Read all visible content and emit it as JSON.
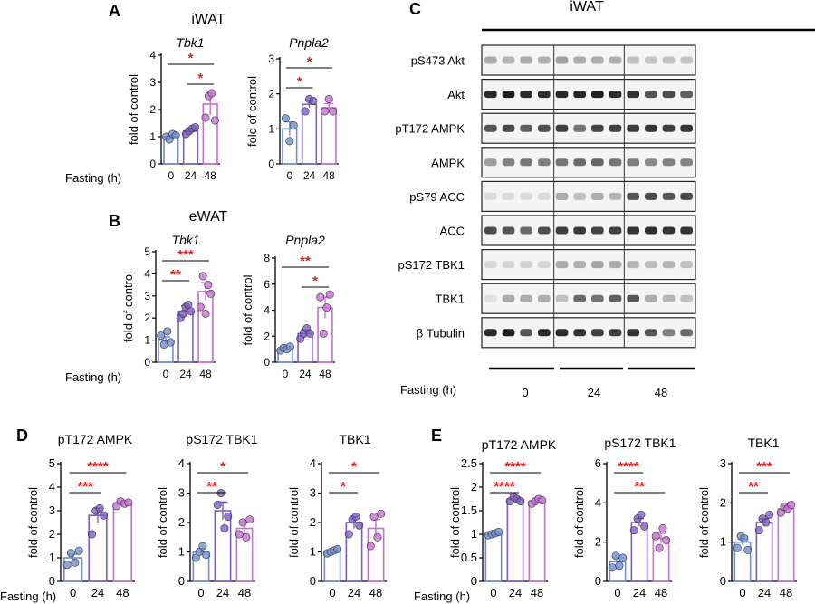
{
  "panels": {
    "A": {
      "letter": "A",
      "section": "iWAT"
    },
    "B": {
      "letter": "B",
      "section": "eWAT"
    },
    "C": {
      "letter": "C",
      "section": "iWAT"
    },
    "D": {
      "letter": "D"
    },
    "E": {
      "letter": "E"
    }
  },
  "fasting_label": "Fasting (h)",
  "colors": {
    "h0": "#6f8fd0",
    "h24": "#7e5cc4",
    "h48": "#c76fd3",
    "sig": "#e02020",
    "axis": "#000000"
  },
  "western": {
    "bands": [
      "pS473 Akt",
      "Akt",
      "pT172 AMPK",
      "AMPK",
      "pS79 ACC",
      "ACC",
      "pS172 TBK1",
      "TBK1",
      "β Tubulin"
    ],
    "groups": [
      "0",
      "24",
      "48"
    ],
    "fasting_label": "Fasting (h)"
  },
  "chart_data": [
    {
      "id": "A1",
      "panel": "A",
      "type": "bar",
      "title": "Tbk1",
      "ylabel": "fold of control",
      "categories": [
        "0",
        "24",
        "48"
      ],
      "values": [
        1.0,
        1.2,
        2.2
      ],
      "errors": [
        0.05,
        0.12,
        0.4
      ],
      "points": [
        [
          1.0,
          0.9,
          1.1,
          1.05
        ],
        [
          1.1,
          1.2,
          1.3,
          1.35
        ],
        [
          1.7,
          2.5,
          2.6,
          1.6
        ]
      ],
      "ylim": [
        0,
        4
      ],
      "yticks": [
        0,
        1,
        2,
        3,
        4
      ],
      "sig": [
        {
          "from": 0,
          "to": 2,
          "label": "*"
        },
        {
          "from": 1,
          "to": 2,
          "label": "*"
        }
      ]
    },
    {
      "id": "A2",
      "panel": "A",
      "type": "bar",
      "title": "Pnpla2",
      "ylabel": "fold of control",
      "categories": [
        "0",
        "24",
        "48"
      ],
      "values": [
        1.0,
        1.7,
        1.6
      ],
      "errors": [
        0.2,
        0.1,
        0.12
      ],
      "points": [
        [
          1.3,
          0.65,
          1.1
        ],
        [
          1.5,
          1.85,
          1.8
        ],
        [
          1.5,
          1.85,
          1.5
        ]
      ],
      "ylim": [
        0,
        3
      ],
      "yticks": [
        0,
        1,
        2,
        3
      ],
      "sig": [
        {
          "from": 0,
          "to": 2,
          "label": "*"
        },
        {
          "from": 0,
          "to": 1,
          "label": "*"
        }
      ]
    },
    {
      "id": "B1",
      "panel": "B",
      "type": "bar",
      "title": "Tbk1",
      "ylabel": "fold of control",
      "categories": [
        "0",
        "24",
        "48"
      ],
      "values": [
        1.0,
        2.3,
        3.2
      ],
      "errors": [
        0.15,
        0.25,
        0.4
      ],
      "points": [
        [
          1.2,
          0.8,
          1.4,
          0.9
        ],
        [
          2.0,
          2.2,
          2.5,
          2.6,
          2.3
        ],
        [
          2.5,
          3.9,
          2.2,
          3.5,
          3.1
        ]
      ],
      "ylim": [
        0,
        5
      ],
      "yticks": [
        0,
        1,
        2,
        3,
        4,
        5
      ],
      "sig": [
        {
          "from": 0,
          "to": 2,
          "label": "***"
        },
        {
          "from": 0,
          "to": 1,
          "label": "**"
        }
      ]
    },
    {
      "id": "B2",
      "panel": "B",
      "type": "bar",
      "title": "Pnpla2",
      "ylabel": "fold of control",
      "categories": [
        "0",
        "24",
        "48"
      ],
      "values": [
        1.0,
        2.2,
        4.2
      ],
      "errors": [
        0.1,
        0.3,
        0.8
      ],
      "points": [
        [
          0.9,
          1.1,
          1.0,
          1.2
        ],
        [
          1.8,
          2.2,
          2.6,
          2.2
        ],
        [
          5.0,
          2.2,
          4.2,
          5.2
        ]
      ],
      "ylim": [
        0,
        8
      ],
      "yticks": [
        0,
        2,
        4,
        6,
        8
      ],
      "sig": [
        {
          "from": 0,
          "to": 2,
          "label": "**"
        },
        {
          "from": 1,
          "to": 2,
          "label": "*"
        }
      ]
    },
    {
      "id": "D1",
      "panel": "D",
      "type": "bar",
      "title": "pT172 AMPK",
      "ylabel": "fold of control",
      "categories": [
        "0",
        "24",
        "48"
      ],
      "values": [
        1.0,
        2.8,
        3.3
      ],
      "errors": [
        0.15,
        0.3,
        0.12
      ],
      "points": [
        [
          0.7,
          1.2,
          0.8,
          1.3
        ],
        [
          2.0,
          3.0,
          3.1,
          2.8
        ],
        [
          3.2,
          3.4,
          3.3,
          3.35
        ]
      ],
      "ylim": [
        0,
        5
      ],
      "yticks": [
        0,
        1,
        2,
        3,
        4,
        5
      ],
      "sig": [
        {
          "from": 0,
          "to": 2,
          "label": "****"
        },
        {
          "from": 0,
          "to": 1,
          "label": "***"
        }
      ]
    },
    {
      "id": "D2",
      "panel": "D",
      "type": "bar",
      "title": "pS172 TBK1",
      "ylabel": "fold of control",
      "categories": [
        "0",
        "24",
        "48"
      ],
      "values": [
        1.0,
        2.4,
        1.8
      ],
      "errors": [
        0.12,
        0.3,
        0.2
      ],
      "points": [
        [
          0.8,
          1.0,
          1.2,
          0.9
        ],
        [
          2.6,
          3.0,
          1.8,
          2.2
        ],
        [
          1.6,
          2.0,
          1.5,
          2.1
        ]
      ],
      "ylim": [
        0,
        4
      ],
      "yticks": [
        0,
        1,
        2,
        3,
        4
      ],
      "sig": [
        {
          "from": 0,
          "to": 2,
          "label": "*"
        },
        {
          "from": 0,
          "to": 1,
          "label": "**"
        }
      ]
    },
    {
      "id": "D3",
      "panel": "D",
      "type": "bar",
      "title": "TBK1",
      "ylabel": "fold of control",
      "categories": [
        "0",
        "24",
        "48"
      ],
      "values": [
        1.0,
        2.0,
        1.8
      ],
      "errors": [
        0.05,
        0.2,
        0.3
      ],
      "points": [
        [
          0.95,
          1.0,
          1.05,
          1.1
        ],
        [
          1.6,
          2.1,
          2.2,
          1.9
        ],
        [
          1.2,
          2.2,
          1.5,
          2.3
        ]
      ],
      "ylim": [
        0,
        4
      ],
      "yticks": [
        0,
        1,
        2,
        3,
        4
      ],
      "sig": [
        {
          "from": 0,
          "to": 2,
          "label": "*"
        },
        {
          "from": 0,
          "to": 1,
          "label": "*"
        }
      ]
    },
    {
      "id": "E1",
      "panel": "E",
      "type": "bar",
      "title": "pT172 AMPK",
      "ylabel": "fold of control",
      "categories": [
        "0",
        "24",
        "48"
      ],
      "values": [
        1.0,
        1.75,
        1.7
      ],
      "errors": [
        0.03,
        0.05,
        0.05
      ],
      "points": [
        [
          0.98,
          1.0,
          1.02,
          1.05
        ],
        [
          1.7,
          1.8,
          1.75,
          1.7
        ],
        [
          1.65,
          1.7,
          1.75,
          1.72
        ]
      ],
      "ylim": [
        0,
        2.5
      ],
      "yticks": [
        0,
        0.5,
        1.0,
        1.5,
        2.0,
        2.5
      ],
      "sig": [
        {
          "from": 0,
          "to": 2,
          "label": "****"
        },
        {
          "from": 0,
          "to": 1,
          "label": "****"
        }
      ]
    },
    {
      "id": "E2",
      "panel": "E",
      "type": "bar",
      "title": "pS172 TBK1",
      "ylabel": "fold of control",
      "categories": [
        "0",
        "24",
        "48"
      ],
      "values": [
        1.0,
        3.0,
        2.2
      ],
      "errors": [
        0.2,
        0.2,
        0.25
      ],
      "points": [
        [
          0.7,
          1.3,
          0.8,
          1.2
        ],
        [
          2.6,
          3.2,
          3.4,
          2.8
        ],
        [
          2.3,
          1.7,
          2.7,
          2.1
        ]
      ],
      "ylim": [
        0,
        6
      ],
      "yticks": [
        0,
        2,
        4,
        6
      ],
      "sig": [
        {
          "from": 0,
          "to": 1,
          "label": "****"
        },
        {
          "from": 0,
          "to": 2,
          "label": "**"
        }
      ]
    },
    {
      "id": "E3",
      "panel": "E",
      "type": "bar",
      "title": "TBK1",
      "ylabel": "fold of control",
      "categories": [
        "0",
        "24",
        "48"
      ],
      "values": [
        1.0,
        1.5,
        1.85
      ],
      "errors": [
        0.08,
        0.1,
        0.06
      ],
      "points": [
        [
          0.85,
          1.15,
          1.1,
          0.8
        ],
        [
          1.3,
          1.6,
          1.5,
          1.7
        ],
        [
          1.75,
          1.9,
          1.85,
          1.95
        ]
      ],
      "ylim": [
        0,
        3
      ],
      "yticks": [
        0,
        1,
        2,
        3
      ],
      "sig": [
        {
          "from": 0,
          "to": 2,
          "label": "***"
        },
        {
          "from": 0,
          "to": 1,
          "label": "**"
        }
      ]
    }
  ]
}
